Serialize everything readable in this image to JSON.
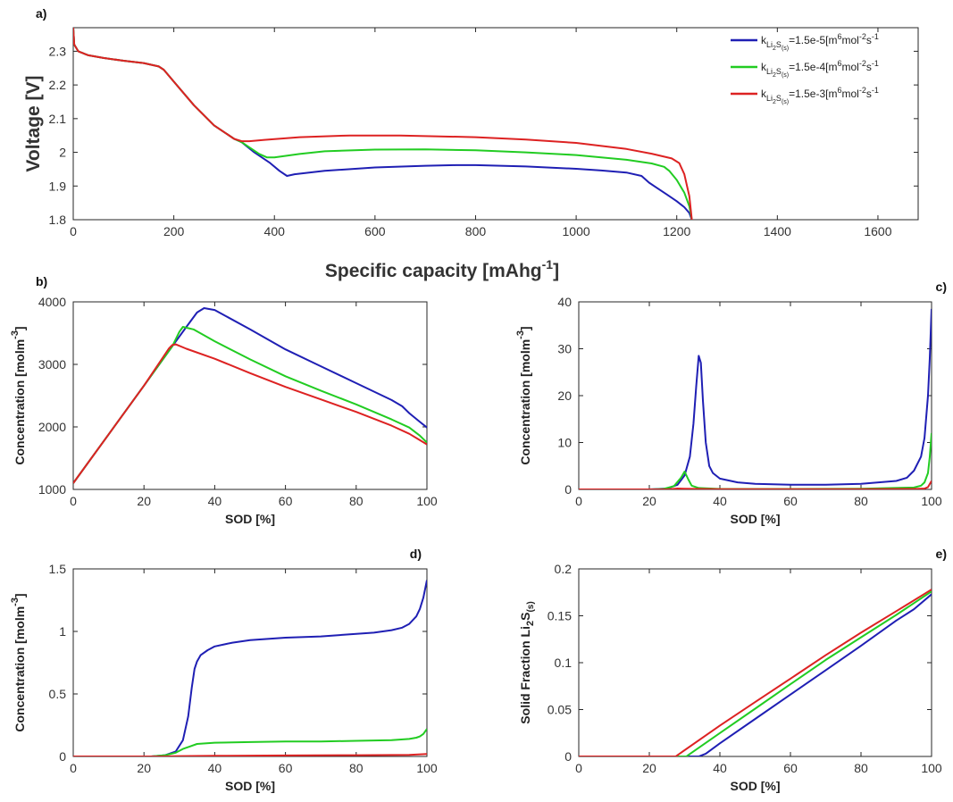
{
  "chart_data": [
    {
      "id": "a",
      "type": "line",
      "panel_label": "a)",
      "xlabel_main": "Specific capacity [mAhg",
      "xlabel_sup": "-1",
      "xlabel_end": "]",
      "ylabel": "Voltage [V]",
      "xlim": [
        0,
        1680
      ],
      "ylim": [
        1.8,
        2.37
      ],
      "xticks": [
        0,
        200,
        400,
        600,
        800,
        1000,
        1200,
        1400,
        1600
      ],
      "yticks": [
        1.8,
        1.9,
        2,
        2.1,
        2.2,
        2.3
      ],
      "legend_position": "top-right",
      "series": [
        {
          "name": "k_Li2S(s)=1.5e-5[m6mol-2s-1]",
          "legend": {
            "k": "k",
            "sub1": "Li",
            "sub2": "2",
            "sub3": "S",
            "sub4": "(s)",
            "value": "=1.5e-5[m",
            "sup1": "6",
            "mid": "mol",
            "sup2": "-2",
            "s": "s",
            "sup3": "-1"
          },
          "color": "#1f1fb4",
          "x": [
            0,
            2,
            10,
            30,
            60,
            100,
            140,
            170,
            180,
            200,
            240,
            280,
            320,
            335,
            360,
            390,
            410,
            425,
            440,
            500,
            600,
            700,
            760,
            800,
            900,
            1000,
            1050,
            1100,
            1130,
            1145,
            1160,
            1180,
            1200,
            1215,
            1225,
            1230
          ],
          "y": [
            2.37,
            2.32,
            2.3,
            2.288,
            2.28,
            2.272,
            2.265,
            2.255,
            2.245,
            2.21,
            2.14,
            2.08,
            2.04,
            2.03,
            2.0,
            1.97,
            1.945,
            1.93,
            1.935,
            1.945,
            1.955,
            1.96,
            1.962,
            1.962,
            1.958,
            1.951,
            1.946,
            1.94,
            1.93,
            1.91,
            1.895,
            1.875,
            1.855,
            1.837,
            1.82,
            1.8
          ]
        },
        {
          "name": "k_Li2S(s)=1.5e-4[m6mol-2s-1]",
          "legend": {
            "k": "k",
            "sub1": "Li",
            "sub2": "2",
            "sub3": "S",
            "sub4": "(s)",
            "value": "=1.5e-4[m",
            "sup1": "6",
            "mid": "mol",
            "sup2": "-2",
            "s": "s",
            "sup3": "-1"
          },
          "color": "#22cc22",
          "x": [
            0,
            2,
            10,
            30,
            60,
            100,
            140,
            170,
            180,
            200,
            240,
            280,
            320,
            335,
            350,
            370,
            385,
            400,
            450,
            500,
            600,
            700,
            800,
            900,
            1000,
            1100,
            1150,
            1175,
            1185,
            1200,
            1215,
            1225,
            1230
          ],
          "y": [
            2.37,
            2.32,
            2.3,
            2.288,
            2.28,
            2.272,
            2.265,
            2.255,
            2.245,
            2.21,
            2.14,
            2.08,
            2.04,
            2.03,
            2.015,
            1.995,
            1.985,
            1.985,
            1.995,
            2.003,
            2.008,
            2.009,
            2.006,
            2.0,
            1.992,
            1.978,
            1.967,
            1.957,
            1.945,
            1.918,
            1.88,
            1.84,
            1.8
          ]
        },
        {
          "name": "k_Li2S(s)=1.5e-3[m6mol-2s-1]",
          "legend": {
            "k": "k",
            "sub1": "Li",
            "sub2": "2",
            "sub3": "S",
            "sub4": "(s)",
            "value": "=1.5e-3[m",
            "sup1": "6",
            "mid": "mol",
            "sup2": "-2",
            "s": "s",
            "sup3": "-1"
          },
          "color": "#dd2222",
          "x": [
            0,
            2,
            10,
            30,
            60,
            100,
            140,
            170,
            180,
            200,
            240,
            280,
            320,
            335,
            350,
            380,
            450,
            550,
            650,
            800,
            900,
            1000,
            1100,
            1150,
            1190,
            1205,
            1215,
            1225,
            1230
          ],
          "y": [
            2.37,
            2.32,
            2.3,
            2.288,
            2.28,
            2.272,
            2.265,
            2.255,
            2.245,
            2.21,
            2.14,
            2.08,
            2.04,
            2.033,
            2.033,
            2.037,
            2.045,
            2.05,
            2.05,
            2.045,
            2.038,
            2.028,
            2.01,
            1.996,
            1.982,
            1.968,
            1.935,
            1.87,
            1.8
          ]
        }
      ]
    },
    {
      "id": "b",
      "type": "line",
      "panel_label": "b)",
      "xlabel": "SOD [%]",
      "ylabel_main": "Concentration [molm",
      "ylabel_sup": "-3",
      "ylabel_end": "]",
      "xlim": [
        0,
        100
      ],
      "ylim": [
        1000,
        4000
      ],
      "xticks": [
        0,
        20,
        40,
        60,
        80,
        100
      ],
      "yticks": [
        1000,
        2000,
        3000,
        4000
      ],
      "series": [
        {
          "color": "#1f1fb4",
          "x": [
            0,
            10,
            20,
            28,
            32,
            35,
            37,
            40,
            50,
            60,
            70,
            80,
            90,
            93,
            95,
            98,
            100
          ],
          "y": [
            1100,
            1880,
            2660,
            3290,
            3600,
            3830,
            3900,
            3870,
            3560,
            3240,
            2970,
            2700,
            2430,
            2330,
            2220,
            2080,
            1990
          ]
        },
        {
          "color": "#22cc22",
          "x": [
            0,
            10,
            20,
            28,
            30,
            31,
            34,
            40,
            50,
            60,
            70,
            80,
            90,
            95,
            98,
            100
          ],
          "y": [
            1100,
            1880,
            2660,
            3290,
            3520,
            3600,
            3560,
            3370,
            3080,
            2810,
            2580,
            2360,
            2120,
            1990,
            1860,
            1750
          ]
        },
        {
          "color": "#dd2222",
          "x": [
            0,
            10,
            20,
            27,
            28,
            29,
            32,
            40,
            50,
            60,
            70,
            80,
            90,
            95,
            100
          ],
          "y": [
            1100,
            1880,
            2660,
            3250,
            3310,
            3320,
            3250,
            3090,
            2860,
            2640,
            2440,
            2240,
            2020,
            1890,
            1720
          ]
        }
      ]
    },
    {
      "id": "c",
      "type": "line",
      "panel_label": "c)",
      "xlabel": "SOD [%]",
      "ylabel_main": "Concentration [molm",
      "ylabel_sup": "-3",
      "ylabel_end": "]",
      "xlim": [
        0,
        100
      ],
      "ylim": [
        0,
        40
      ],
      "xticks": [
        0,
        20,
        40,
        60,
        80,
        100
      ],
      "yticks": [
        0,
        10,
        20,
        30,
        40
      ],
      "series": [
        {
          "color": "#1f1fb4",
          "x": [
            0,
            20,
            25,
            28,
            30,
            31.5,
            32.5,
            33.3,
            34,
            34.6,
            35.2,
            36,
            37,
            38,
            40,
            45,
            50,
            60,
            70,
            80,
            90,
            93,
            95,
            97,
            98,
            99,
            99.5,
            100
          ],
          "y": [
            0,
            0,
            0.2,
            1,
            3,
            7,
            14,
            22,
            28.5,
            27,
            19,
            10,
            5,
            3.5,
            2.3,
            1.5,
            1.2,
            1,
            1,
            1.2,
            1.8,
            2.5,
            4,
            7,
            11,
            20,
            28,
            38.5
          ]
        },
        {
          "color": "#22cc22",
          "x": [
            0,
            20,
            24,
            27,
            29,
            30,
            31,
            32,
            34,
            40,
            60,
            80,
            95,
            97,
            98,
            99,
            99.5,
            100
          ],
          "y": [
            0,
            0,
            0.1,
            0.7,
            2.5,
            3.8,
            2.2,
            0.8,
            0.3,
            0.1,
            0.1,
            0.15,
            0.4,
            0.8,
            1.5,
            3.5,
            7,
            12
          ]
        },
        {
          "color": "#dd2222",
          "x": [
            0,
            25,
            28,
            30,
            40,
            60,
            80,
            95,
            98,
            99,
            100
          ],
          "y": [
            0,
            0,
            0.2,
            0.15,
            0.05,
            0.05,
            0.05,
            0.1,
            0.2,
            0.5,
            1.8
          ]
        }
      ]
    },
    {
      "id": "d",
      "type": "line",
      "panel_label": "d)",
      "xlabel": "SOD [%]",
      "ylabel_main": "Concentration [molm",
      "ylabel_sup": "-3",
      "ylabel_end": "]",
      "xlim": [
        0,
        100
      ],
      "ylim": [
        0,
        1.5
      ],
      "xticks": [
        0,
        20,
        40,
        60,
        80,
        100
      ],
      "yticks": [
        0,
        0.5,
        1,
        1.5
      ],
      "series": [
        {
          "color": "#1f1fb4",
          "x": [
            0,
            22,
            26,
            29,
            31,
            32.5,
            33.5,
            34.3,
            35,
            36,
            38,
            40,
            45,
            50,
            60,
            70,
            80,
            85,
            90,
            93,
            95,
            97,
            98,
            99,
            100
          ],
          "y": [
            0,
            0,
            0.01,
            0.04,
            0.13,
            0.32,
            0.55,
            0.7,
            0.76,
            0.81,
            0.85,
            0.88,
            0.91,
            0.93,
            0.95,
            0.96,
            0.98,
            0.99,
            1.01,
            1.03,
            1.06,
            1.12,
            1.18,
            1.27,
            1.41
          ]
        },
        {
          "color": "#22cc22",
          "x": [
            0,
            22,
            26,
            29,
            31,
            33,
            35,
            40,
            50,
            60,
            70,
            80,
            90,
            95,
            97,
            98,
            99,
            100
          ],
          "y": [
            0,
            0,
            0.01,
            0.03,
            0.06,
            0.08,
            0.1,
            0.11,
            0.115,
            0.12,
            0.12,
            0.125,
            0.13,
            0.14,
            0.15,
            0.16,
            0.18,
            0.22
          ]
        },
        {
          "color": "#dd2222",
          "x": [
            0,
            25,
            30,
            40,
            60,
            80,
            95,
            100
          ],
          "y": [
            0,
            0,
            0.003,
            0.005,
            0.008,
            0.01,
            0.012,
            0.02
          ]
        }
      ]
    },
    {
      "id": "e",
      "type": "line",
      "panel_label": "e)",
      "xlabel": "SOD [%]",
      "ylabel_main": "Solid Fraction Li",
      "ylabel_sub1": "2",
      "ylabel_mid": "S",
      "ylabel_sub2": "(s)",
      "xlim": [
        0,
        100
      ],
      "ylim": [
        0,
        0.2
      ],
      "xticks": [
        0,
        20,
        40,
        60,
        80,
        100
      ],
      "yticks": [
        0,
        0.05,
        0.1,
        0.15,
        0.2
      ],
      "series": [
        {
          "color": "#1f1fb4",
          "x": [
            0,
            34,
            36,
            40,
            50,
            60,
            70,
            80,
            90,
            95,
            100
          ],
          "y": [
            0,
            0,
            0.003,
            0.014,
            0.04,
            0.066,
            0.092,
            0.118,
            0.145,
            0.157,
            0.173
          ]
        },
        {
          "color": "#22cc22",
          "x": [
            0,
            30.5,
            32,
            40,
            50,
            60,
            70,
            80,
            90,
            100
          ],
          "y": [
            0,
            0,
            0.004,
            0.025,
            0.051,
            0.077,
            0.103,
            0.127,
            0.151,
            0.176
          ]
        },
        {
          "color": "#dd2222",
          "x": [
            0,
            27.5,
            29,
            40,
            50,
            60,
            70,
            80,
            90,
            100
          ],
          "y": [
            0,
            0,
            0.004,
            0.033,
            0.058,
            0.083,
            0.108,
            0.132,
            0.155,
            0.178
          ]
        }
      ]
    }
  ]
}
